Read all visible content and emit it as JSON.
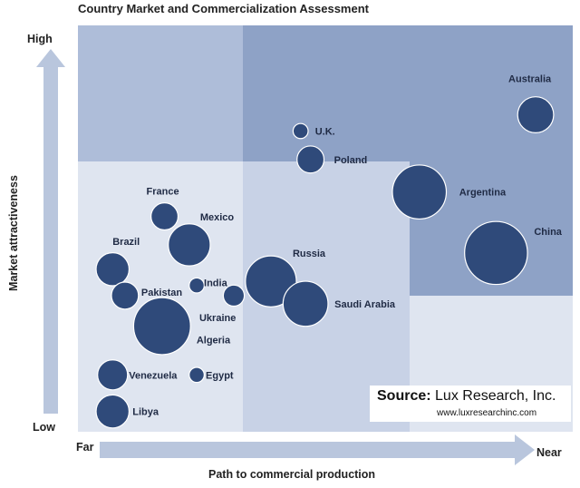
{
  "title": "Country Market and Commercialization Assessment",
  "colors": {
    "bubble": "#2f4a7a",
    "bubble_stroke": "#ffffff",
    "zone_dark": "#8ea2c6",
    "zone_mid": "#aebdd9",
    "zone_light": "#dfe5f0",
    "arrow": "#b9c6dd"
  },
  "chart_data": {
    "type": "scatter",
    "title": "Country Market and Commercialization Assessment",
    "xlabel": "Path to commercial production",
    "ylabel": "Market attractiveness",
    "x_ends": [
      "Far",
      "Near"
    ],
    "y_ends": [
      "Low",
      "High"
    ],
    "xlim": [
      0,
      100
    ],
    "ylim": [
      0,
      100
    ],
    "points": [
      {
        "label": "Australia",
        "x": 92.5,
        "y": 78.0,
        "size": 4.5
      },
      {
        "label": "U.K.",
        "x": 45.0,
        "y": 74.0,
        "size": 1.0
      },
      {
        "label": "Poland",
        "x": 47.0,
        "y": 67.0,
        "size": 3.0
      },
      {
        "label": "Argentina",
        "x": 69.0,
        "y": 59.0,
        "size": 7.5
      },
      {
        "label": "China",
        "x": 84.5,
        "y": 44.0,
        "size": 9.0
      },
      {
        "label": "France",
        "x": 17.5,
        "y": 53.0,
        "size": 3.0
      },
      {
        "label": "Mexico",
        "x": 22.5,
        "y": 46.0,
        "size": 5.5
      },
      {
        "label": "Brazil",
        "x": 7.0,
        "y": 40.0,
        "size": 4.0
      },
      {
        "label": "India",
        "x": 24.0,
        "y": 36.0,
        "size": 1.0
      },
      {
        "label": "Pakistan",
        "x": 9.5,
        "y": 33.5,
        "size": 3.0
      },
      {
        "label": "Ukraine",
        "x": 31.5,
        "y": 33.5,
        "size": 2.0
      },
      {
        "label": "Russia",
        "x": 39.0,
        "y": 37.0,
        "size": 7.0
      },
      {
        "label": "Saudi Arabia",
        "x": 46.0,
        "y": 31.5,
        "size": 6.0
      },
      {
        "label": "Algeria",
        "x": 17.0,
        "y": 26.0,
        "size": 8.0
      },
      {
        "label": "Venezuela",
        "x": 7.0,
        "y": 14.0,
        "size": 3.5
      },
      {
        "label": "Egypt",
        "x": 24.0,
        "y": 14.0,
        "size": 1.0
      },
      {
        "label": "Libya",
        "x": 7.0,
        "y": 5.0,
        "size": 4.0
      }
    ]
  },
  "source": {
    "label": "Source:",
    "org": "Lux Research, Inc.",
    "url": "www.luxresearchinc.com"
  }
}
